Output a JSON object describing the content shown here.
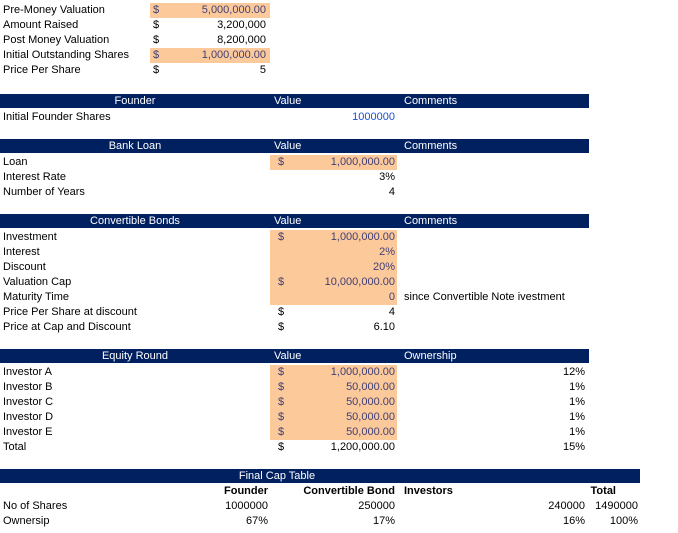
{
  "top": [
    {
      "label": "Pre-Money Valuation",
      "cur": "$",
      "value": "5,000,000.00",
      "input": true
    },
    {
      "label": "Amount Raised",
      "cur": "$",
      "value": "3,200,000",
      "input": false
    },
    {
      "label": "Post Money Valuation",
      "cur": "$",
      "value": "8,200,000",
      "input": false
    },
    {
      "label": "Initial Outstanding Shares",
      "cur": "$",
      "value": "1,000,000.00",
      "input": true
    },
    {
      "label": "Price Per Share",
      "cur": "$",
      "value": "5",
      "input": false
    }
  ],
  "sections": [
    {
      "title": "Founder",
      "value_header": "Value",
      "third_header": "Comments",
      "rows": [
        {
          "label": "Initial Founder Shares",
          "cur": "",
          "value": "1000000",
          "input": false,
          "blue": true,
          "extra": ""
        }
      ]
    },
    {
      "title": "Bank Loan",
      "value_header": "Value",
      "third_header": "Comments",
      "rows": [
        {
          "label": "Loan",
          "cur": "$",
          "value": "1,000,000.00",
          "input": true,
          "extra": ""
        },
        {
          "label": "Interest Rate",
          "cur": "",
          "value": "3%",
          "input": false,
          "extra": ""
        },
        {
          "label": "Number of Years",
          "cur": "",
          "value": "4",
          "input": false,
          "extra": ""
        }
      ]
    },
    {
      "title": "Convertible Bonds",
      "value_header": "Value",
      "third_header": "Comments",
      "rows": [
        {
          "label": "Investment",
          "cur": "$",
          "value": "1,000,000.00",
          "input": true,
          "extra": ""
        },
        {
          "label": "Interest",
          "cur": "",
          "value": "2%",
          "input": true,
          "extra": ""
        },
        {
          "label": "Discount",
          "cur": "",
          "value": "20%",
          "input": true,
          "extra": ""
        },
        {
          "label": "Valuation Cap",
          "cur": "$",
          "value": "10,000,000.00",
          "input": true,
          "extra": ""
        },
        {
          "label": "Maturity Time",
          "cur": "",
          "value": "0",
          "input": true,
          "extra": "since Convertible Note ivestment"
        },
        {
          "label": "Price Per Share  at discount",
          "cur": "$",
          "value": "4",
          "input": false,
          "extra": ""
        },
        {
          "label": "Price at Cap and Discount",
          "cur": "$",
          "value": "6.10",
          "input": false,
          "extra": ""
        }
      ]
    },
    {
      "title": "Equity Round",
      "value_header": "Value",
      "third_header": "Ownership",
      "rows": [
        {
          "label": "Investor A",
          "cur": "$",
          "value": "1,000,000.00",
          "input": true,
          "own": "12%"
        },
        {
          "label": "Investor B",
          "cur": "$",
          "value": "50,000.00",
          "input": true,
          "own": "1%"
        },
        {
          "label": "Investor C",
          "cur": "$",
          "value": "50,000.00",
          "input": true,
          "own": "1%"
        },
        {
          "label": "Investor D",
          "cur": "$",
          "value": "50,000.00",
          "input": true,
          "own": "1%"
        },
        {
          "label": "Investor E",
          "cur": "$",
          "value": "50,000.00",
          "input": true,
          "own": "1%"
        },
        {
          "label": "Total",
          "cur": "$",
          "value": "1,200,000.00",
          "input": false,
          "own": "15%"
        }
      ]
    }
  ],
  "cap": {
    "title": "Final Cap Table",
    "headers": {
      "founder": "Founder",
      "bond": "Convertible Bond",
      "investors": "Investors",
      "total": "Total"
    },
    "rows": [
      {
        "label": "No of Shares",
        "founder": "1000000",
        "bond": "250000",
        "investors": "240000",
        "total": "1490000"
      },
      {
        "label": "Ownersip",
        "founder": "67%",
        "bond": "17%",
        "investors": "16%",
        "total": "100%"
      }
    ]
  },
  "colors": {
    "header": "#002060",
    "input_fill": "#fcc99a",
    "input_text": "#3f3f76"
  }
}
